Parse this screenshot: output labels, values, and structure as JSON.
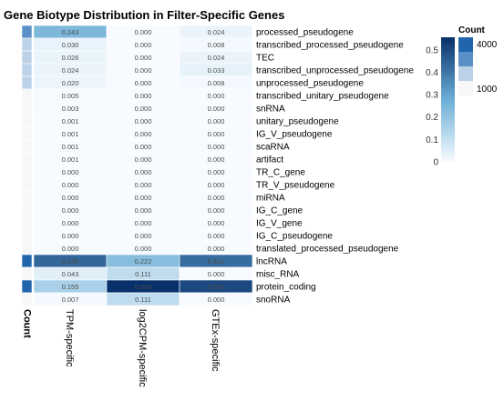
{
  "chart_data": {
    "type": "heatmap",
    "title": "Gene Biotype Distribution in Filter-Specific Genes",
    "columns": [
      "TPM-specific",
      "log2CPM-specific",
      "GTEx-specific"
    ],
    "annotation_label": "Count",
    "rows": [
      {
        "label": "processed_pseudogene",
        "values": [
          0.243,
          0.0,
          0.024
        ],
        "count": 3000
      },
      {
        "label": "transcribed_processed_pseudogene",
        "values": [
          0.03,
          0.0,
          0.008
        ],
        "count": 1200
      },
      {
        "label": "TEC",
        "values": [
          0.026,
          0.0,
          0.024
        ],
        "count": 1100
      },
      {
        "label": "transcribed_unprocessed_pseudogene",
        "values": [
          0.024,
          0.0,
          0.033
        ],
        "count": 1100
      },
      {
        "label": "unprocessed_pseudogene",
        "values": [
          0.02,
          0.0,
          0.008
        ],
        "count": 1000
      },
      {
        "label": "transcribed_unitary_pseudogene",
        "values": [
          0.005,
          0.0,
          0.0
        ],
        "count": 900
      },
      {
        "label": "snRNA",
        "values": [
          0.003,
          0.0,
          0.0
        ],
        "count": 900
      },
      {
        "label": "unitary_pseudogene",
        "values": [
          0.001,
          0.0,
          0.0
        ],
        "count": 900
      },
      {
        "label": "IG_V_pseudogene",
        "values": [
          0.001,
          0.0,
          0.0
        ],
        "count": 900
      },
      {
        "label": "scaRNA",
        "values": [
          0.001,
          0.0,
          0.0
        ],
        "count": 900
      },
      {
        "label": "artifact",
        "values": [
          0.001,
          0.0,
          0.0
        ],
        "count": 900
      },
      {
        "label": "TR_C_gene",
        "values": [
          0.0,
          0.0,
          0.0
        ],
        "count": 900
      },
      {
        "label": "TR_V_pseudogene",
        "values": [
          0.0,
          0.0,
          0.0
        ],
        "count": 900
      },
      {
        "label": "miRNA",
        "values": [
          0.0,
          0.0,
          0.0
        ],
        "count": 900
      },
      {
        "label": "IG_C_gene",
        "values": [
          0.0,
          0.0,
          0.0
        ],
        "count": 900
      },
      {
        "label": "IG_V_gene",
        "values": [
          0.0,
          0.0,
          0.0
        ],
        "count": 900
      },
      {
        "label": "IG_C_pseudogene",
        "values": [
          0.0,
          0.0,
          0.0
        ],
        "count": 900
      },
      {
        "label": "translated_processed_pseudogene",
        "values": [
          0.0,
          0.0,
          0.0
        ],
        "count": 900
      },
      {
        "label": "lncRNA",
        "values": [
          0.436,
          0.222,
          0.421
        ],
        "count": 4500
      },
      {
        "label": "misc_RNA",
        "values": [
          0.043,
          0.111,
          0.0
        ],
        "count": 900
      },
      {
        "label": "protein_coding",
        "values": [
          0.155,
          0.556,
          0.5
        ],
        "count": 4600
      },
      {
        "label": "snoRNA",
        "values": [
          0.007,
          0.111,
          0.0
        ],
        "count": 900
      }
    ],
    "color_scale": {
      "min": 0,
      "max": 0.556,
      "ticks": [
        0,
        0.1,
        0.2,
        0.3,
        0.4,
        0.5
      ],
      "tick_labels": [
        "0",
        "0.1",
        "0.2",
        "0.3",
        "0.4",
        "0.5"
      ],
      "low_color": "#f7fbff",
      "high_color": "#08306b"
    },
    "count_legend": {
      "title": "Count",
      "entries": [
        "4000",
        "1000"
      ],
      "colors": [
        "#2166ac",
        "#5a8fc8",
        "#bcd2e8",
        "#f7f7f7"
      ]
    }
  }
}
